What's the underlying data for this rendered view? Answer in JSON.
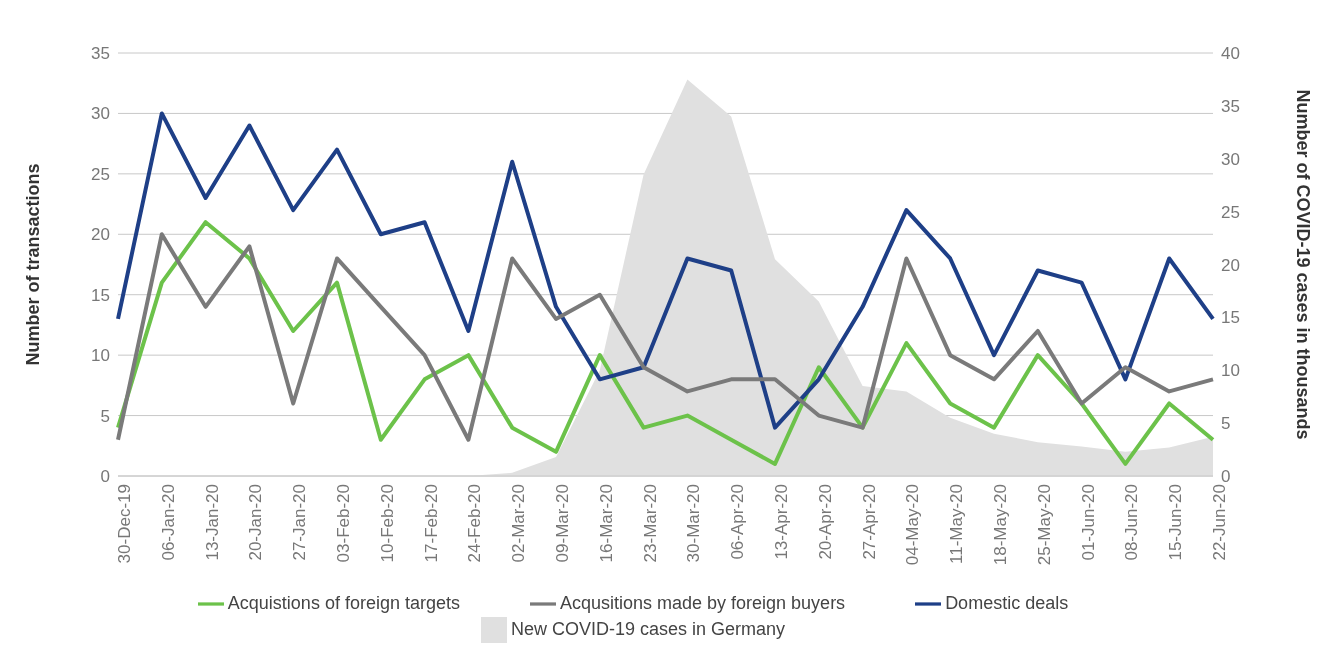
{
  "chart_data": {
    "type": "line",
    "ylabel": "Number of transactions",
    "y2label": "Number of COVID-19 cases in thousands",
    "categories": [
      "30-Dec-19",
      "06-Jan-20",
      "13-Jan-20",
      "20-Jan-20",
      "27-Jan-20",
      "03-Feb-20",
      "10-Feb-20",
      "17-Feb-20",
      "24-Feb-20",
      "02-Mar-20",
      "09-Mar-20",
      "16-Mar-20",
      "23-Mar-20",
      "30-Mar-20",
      "06-Apr-20",
      "13-Apr-20",
      "20-Apr-20",
      "27-Apr-20",
      "04-May-20",
      "11-May-20",
      "18-May-20",
      "25-May-20",
      "01-Jun-20",
      "08-Jun-20",
      "15-Jun-20",
      "22-Jun-20"
    ],
    "series": [
      {
        "name": "New COVID-19 cases in Germany",
        "type": "area",
        "axis": "y2",
        "color": "#e0e0e0",
        "values": [
          0,
          0,
          0,
          0,
          0,
          0,
          0,
          0,
          0,
          0.3,
          1.8,
          10,
          28.5,
          37.5,
          34,
          20.5,
          16.5,
          8.5,
          8,
          5.5,
          4,
          3.2,
          2.8,
          2.3,
          2.7,
          3.7
        ]
      },
      {
        "name": "Acquistions of foreign targets",
        "color": "#6cc24a",
        "values": [
          4,
          16,
          21,
          18,
          12,
          16,
          3,
          8,
          10,
          4,
          2,
          10,
          4,
          5,
          3,
          1,
          9,
          4,
          11,
          6,
          4,
          10,
          6,
          1,
          6,
          3
        ]
      },
      {
        "name": "Domestic deals",
        "color": "#1e3f87",
        "values": [
          13,
          30,
          23,
          29,
          22,
          27,
          20,
          21,
          12,
          26,
          14,
          8,
          9,
          18,
          17,
          4,
          8,
          14,
          22,
          18,
          10,
          17,
          16,
          8,
          18,
          13
        ]
      },
      {
        "name": "Acqusitions made by foreign buyers",
        "color": "#7a7a7a",
        "values": [
          3,
          20,
          14,
          19,
          6,
          18,
          14,
          10,
          3,
          18,
          13,
          15,
          9,
          7,
          8,
          8,
          5,
          4,
          18,
          10,
          8,
          12,
          6,
          9,
          7,
          8
        ]
      }
    ],
    "ylim": [
      0,
      35
    ],
    "yticks": [
      0,
      5,
      10,
      15,
      20,
      25,
      30,
      35
    ],
    "y2lim": [
      0,
      40
    ],
    "y2ticks": [
      0,
      5,
      10,
      15,
      20,
      25,
      30,
      35,
      40
    ],
    "grid": "y",
    "legend": "bottom",
    "marker": "none",
    "line_style": "solid"
  }
}
